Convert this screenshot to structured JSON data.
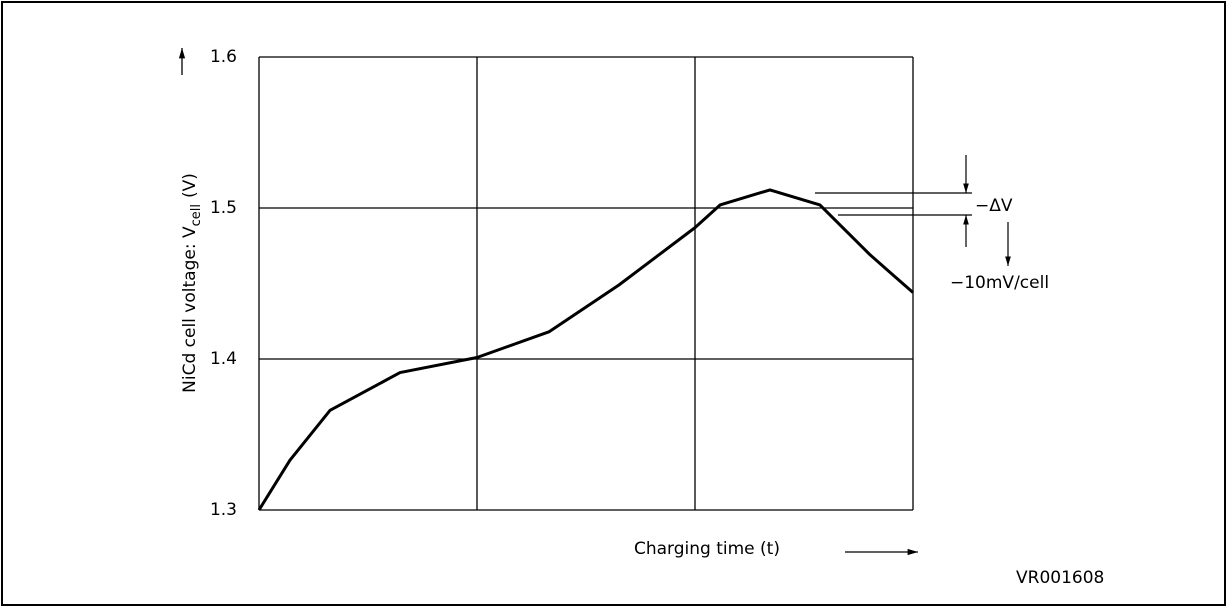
{
  "chart_data": {
    "type": "line",
    "y_label": {
      "main": "NiCd cell voltage: V",
      "sub": "cell",
      "unit": "(V)"
    },
    "x_label": "Charging time (t)",
    "annotations": {
      "delta": "−ΔV",
      "rate": "−10mV/cell"
    },
    "figure_id": "VR001608",
    "x": [
      0,
      0.142,
      0.326,
      0.647,
      1.0,
      1.33,
      1.651,
      2.0,
      2.115,
      2.344,
      2.573,
      2.803,
      3.0
    ],
    "values": [
      1.3,
      1.333,
      1.366,
      1.391,
      1.401,
      1.418,
      1.449,
      1.487,
      1.502,
      1.512,
      1.502,
      1.469,
      1.444
    ],
    "color": "#000000",
    "xlim": [
      0,
      3
    ],
    "xticks": [
      0,
      1,
      2,
      3
    ],
    "show_xtick_labels": false,
    "ylim": [
      1.3,
      1.6
    ],
    "yticks": [
      1.3,
      1.4,
      1.5,
      1.6
    ],
    "grid": true
  }
}
